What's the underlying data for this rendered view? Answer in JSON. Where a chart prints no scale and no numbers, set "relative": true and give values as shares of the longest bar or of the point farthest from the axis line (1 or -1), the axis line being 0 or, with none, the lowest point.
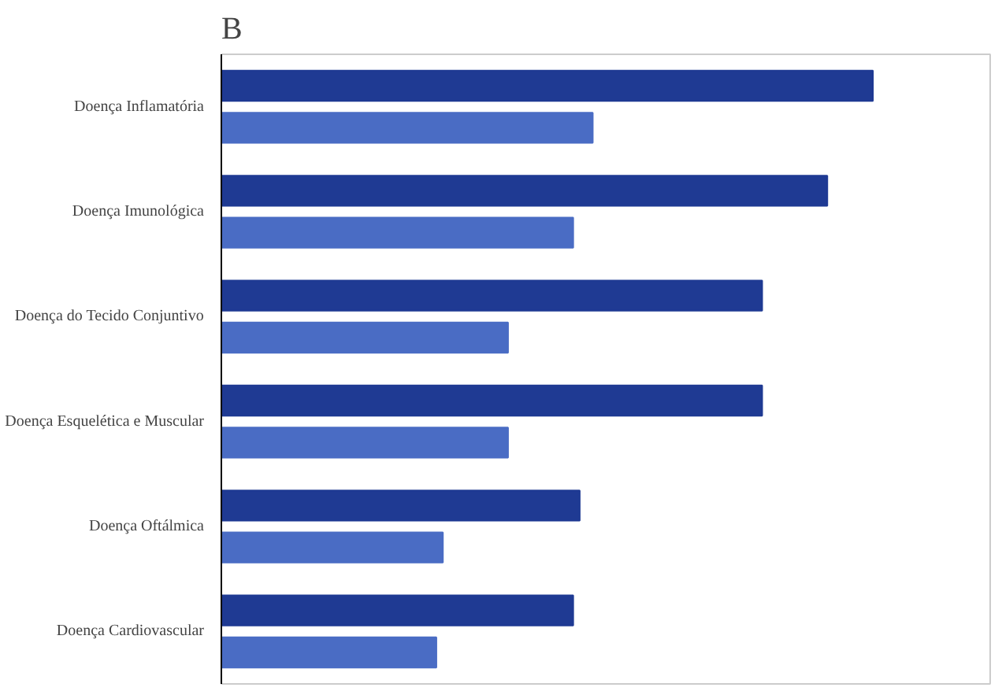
{
  "chart_data": {
    "type": "bar",
    "orientation": "horizontal",
    "relative": true,
    "title": "B",
    "categories": [
      "Doença Inflamatória",
      "Doença Imunológica",
      "Doença do Tecido Conjuntivo",
      "Doença Esquelética e Muscular",
      "Doença Oftálmica",
      "Doença Cardiovascular"
    ],
    "series": [
      {
        "color": "#1f3a93",
        "values": [
          1,
          0.93,
          0.83,
          0.83,
          0.55,
          0.54
        ]
      },
      {
        "color": "#4a6cc4",
        "values": [
          0.57,
          0.54,
          0.44,
          0.44,
          0.34,
          0.33
        ]
      }
    ],
    "grid": false
  }
}
